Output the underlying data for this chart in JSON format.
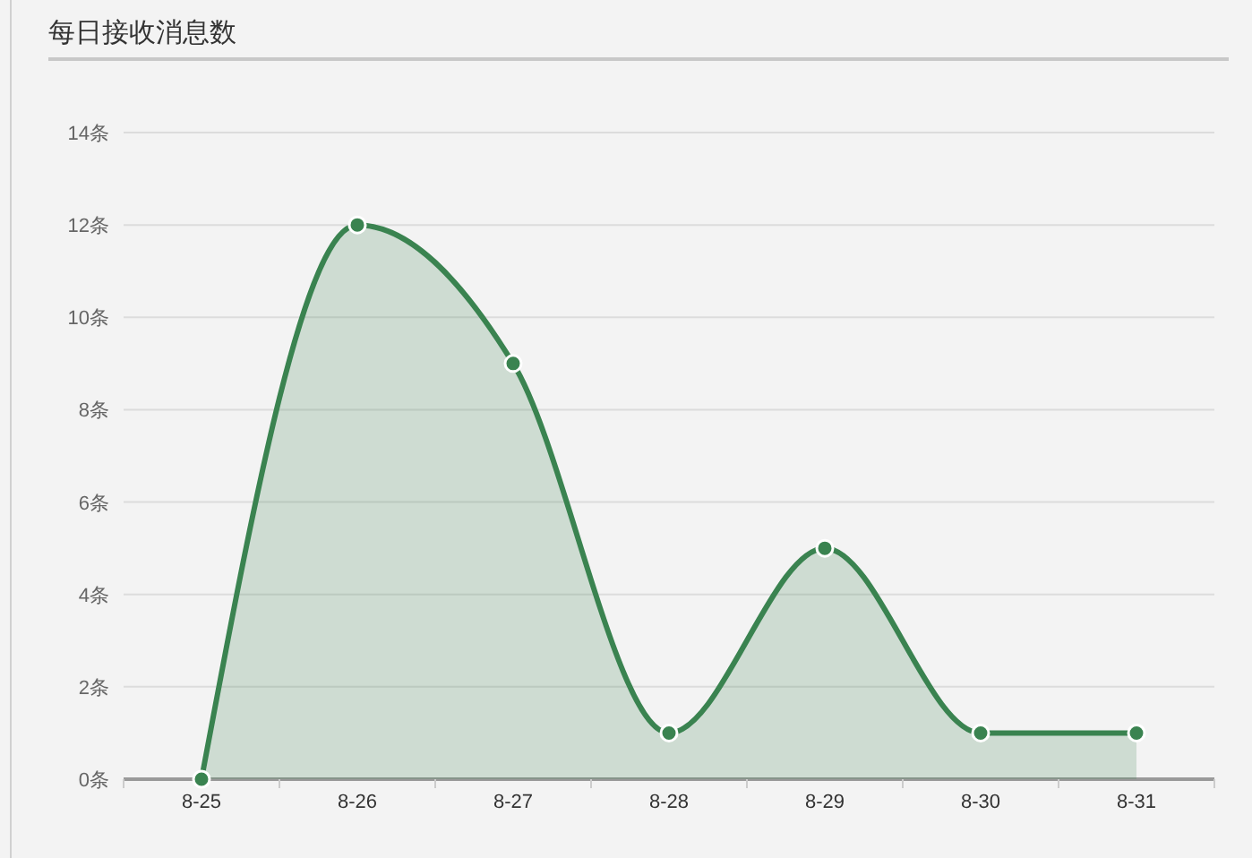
{
  "chart_data": {
    "type": "area",
    "title": "每日接收消息数",
    "categories": [
      "8-25",
      "8-26",
      "8-27",
      "8-28",
      "8-29",
      "8-30",
      "8-31"
    ],
    "series": [
      {
        "color": "#3a8350",
        "values": [
          0,
          12,
          9,
          1,
          5,
          1,
          1
        ]
      }
    ],
    "ylim": [
      0,
      14
    ],
    "yticks": [
      {
        "value": 0,
        "label": "0条"
      },
      {
        "value": 2,
        "label": "2条"
      },
      {
        "value": 4,
        "label": "4条"
      },
      {
        "value": 6,
        "label": "6条"
      },
      {
        "value": 8,
        "label": "8条"
      },
      {
        "value": 10,
        "label": "10条"
      },
      {
        "value": 12,
        "label": "12条"
      },
      {
        "value": 14,
        "label": "14条"
      }
    ],
    "grid": "y",
    "marker": "circle",
    "line_style": "solid"
  }
}
